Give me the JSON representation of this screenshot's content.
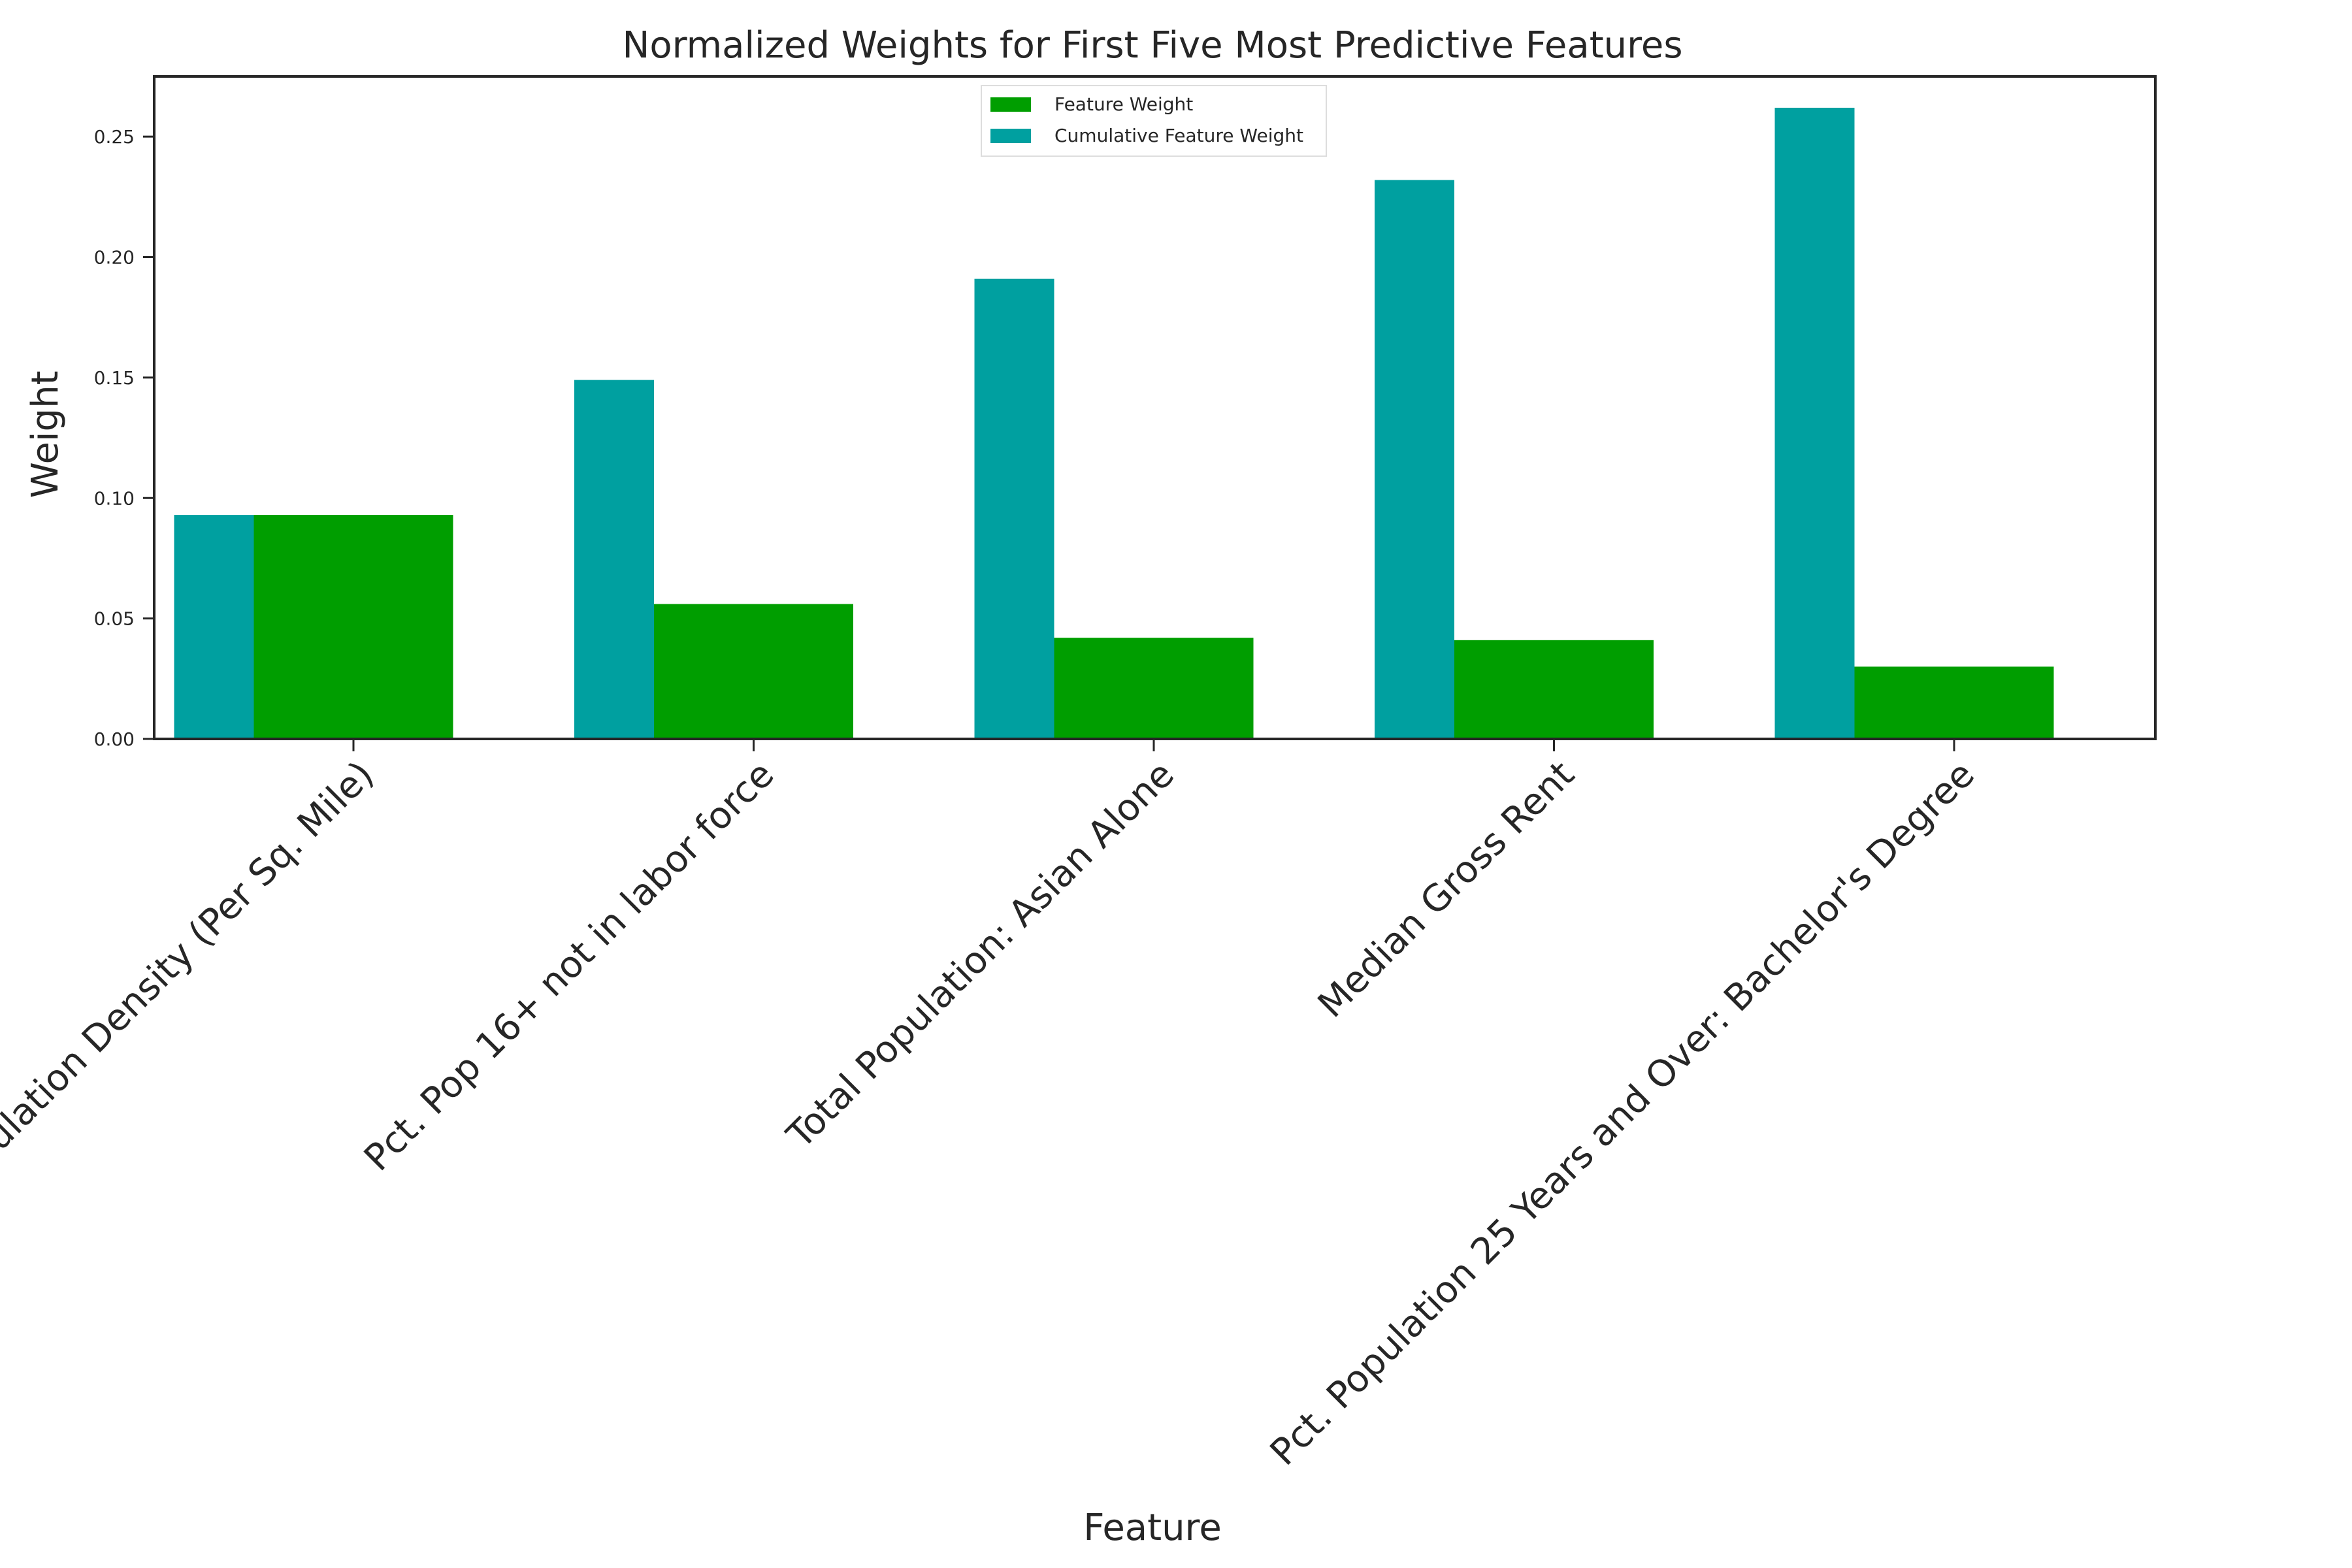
{
  "chart_data": {
    "type": "bar",
    "title": "Normalized Weights for First Five Most Predictive Features",
    "xlabel": "Feature",
    "ylabel": "Weight",
    "ylim": [
      0,
      0.275
    ],
    "yticks": [
      "0.00",
      "0.05",
      "0.10",
      "0.15",
      "0.20",
      "0.25"
    ],
    "categories": [
      "Population Density (Per Sq. Mile)",
      "Pct. Pop 16+ not in labor force",
      "Total Population: Asian Alone",
      "Median Gross Rent",
      "Pct. Population 25 Years and Over: Bachelor's Degree"
    ],
    "series": [
      {
        "name": "Feature Weight",
        "color": "#009e00",
        "values": [
          0.093,
          0.056,
          0.042,
          0.041,
          0.03
        ]
      },
      {
        "name": "Cumulative Feature Weight",
        "color": "#00a0a0",
        "values": [
          0.093,
          0.149,
          0.191,
          0.232,
          0.262
        ]
      }
    ],
    "legend": "top-center",
    "grid": false
  }
}
